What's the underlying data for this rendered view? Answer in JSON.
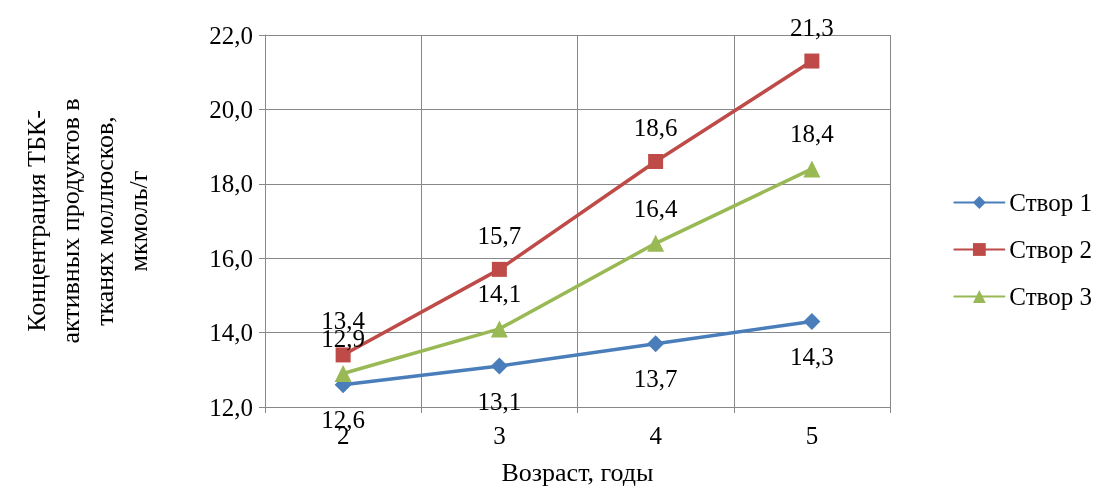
{
  "chart_data": {
    "type": "line",
    "xlabel": "Возраст, годы",
    "ylabel": "Концентрация ТБК-\nактивных продуктов в\nтканях моллюсков,\nмкмоль/г",
    "categories": [
      "2",
      "3",
      "4",
      "5"
    ],
    "series": [
      {
        "name": "Створ 1",
        "color": "#4a7ebb",
        "marker": "diamond",
        "values": [
          12.6,
          13.1,
          13.7,
          14.3
        ],
        "value_labels": [
          "12,6",
          "13,1",
          "13,7",
          "14,3"
        ]
      },
      {
        "name": "Створ 2",
        "color": "#be4b48",
        "marker": "square",
        "values": [
          13.4,
          15.7,
          18.6,
          21.3
        ],
        "value_labels": [
          "13,4",
          "15,7",
          "18,6",
          "21,3"
        ]
      },
      {
        "name": "Створ 3",
        "color": "#98b954",
        "marker": "triangle",
        "values": [
          12.9,
          14.1,
          16.4,
          18.4
        ],
        "value_labels": [
          "12,9",
          "14,1",
          "16,4",
          "18,4"
        ]
      }
    ],
    "ylim": [
      12,
      22
    ],
    "yticks": [
      {
        "value": 12,
        "label": "12,0"
      },
      {
        "value": 14,
        "label": "14,0"
      },
      {
        "value": 16,
        "label": "16,0"
      },
      {
        "value": 18,
        "label": "18,0"
      },
      {
        "value": 20,
        "label": "20,0"
      },
      {
        "value": 22,
        "label": "22,0"
      }
    ],
    "grid": true,
    "legend": "right"
  }
}
